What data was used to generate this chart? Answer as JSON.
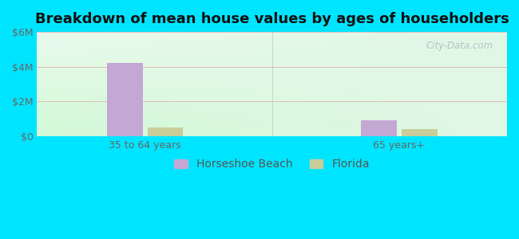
{
  "title": "Breakdown of mean house values by ages of householders",
  "categories": [
    "35 to 64 years",
    "65 years+"
  ],
  "series": {
    "Horseshoe Beach": [
      4200000,
      900000
    ],
    "Florida": [
      500000,
      420000
    ]
  },
  "bar_colors": {
    "Horseshoe Beach": "#c4a8d4",
    "Florida": "#c8cd9a"
  },
  "ylim": [
    0,
    6000000
  ],
  "yticks": [
    0,
    2000000,
    4000000,
    6000000
  ],
  "ytick_labels": [
    "$0",
    "$2M",
    "$4M",
    "$6M"
  ],
  "outer_background": "#00e5ff",
  "watermark": "City-Data.com",
  "title_fontsize": 13,
  "legend_fontsize": 10,
  "tick_fontsize": 9,
  "group_positions": [
    0.75,
    2.75
  ],
  "xlim": [
    -0.1,
    3.6
  ],
  "bar_width": 0.28,
  "separator_x": 1.75
}
